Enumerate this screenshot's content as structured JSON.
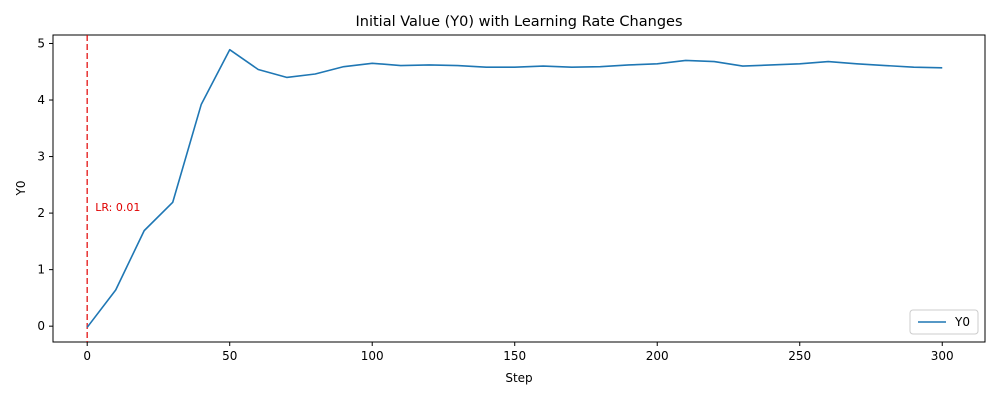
{
  "chart_data": {
    "type": "line",
    "title": "Initial Value (Y0) with Learning Rate Changes",
    "xlabel": "Step",
    "ylabel": "Y0",
    "xlim": [
      -12,
      315
    ],
    "ylim": [
      -0.28,
      5.15
    ],
    "xticks": [
      0,
      50,
      100,
      150,
      200,
      250,
      300
    ],
    "yticks": [
      0,
      1,
      2,
      3,
      4,
      5
    ],
    "grid": false,
    "legend_position": "lower right",
    "series": [
      {
        "name": "Y0",
        "color": "#1f77b4",
        "x": [
          0,
          10,
          20,
          30,
          40,
          50,
          60,
          70,
          80,
          90,
          100,
          110,
          120,
          130,
          140,
          150,
          160,
          170,
          180,
          190,
          200,
          210,
          220,
          230,
          240,
          250,
          260,
          270,
          280,
          290,
          300
        ],
        "y": [
          -0.02,
          0.64,
          1.69,
          2.19,
          3.92,
          4.89,
          4.54,
          4.4,
          4.46,
          4.59,
          4.65,
          4.61,
          4.62,
          4.61,
          4.58,
          4.58,
          4.6,
          4.58,
          4.59,
          4.62,
          4.64,
          4.7,
          4.68,
          4.6,
          4.62,
          4.64,
          4.68,
          4.64,
          4.61,
          4.58,
          4.57
        ]
      }
    ],
    "vlines": [
      {
        "x": 0,
        "label": "LR: 0.01",
        "label_y": 2.0,
        "color": "#e00000"
      }
    ]
  }
}
